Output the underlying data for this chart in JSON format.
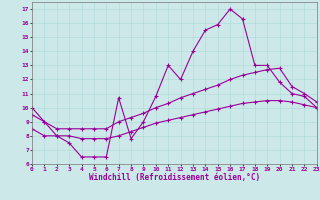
{
  "title": "",
  "xlabel": "Windchill (Refroidissement éolien,°C)",
  "ylabel": "",
  "bg_color": "#cce8e8",
  "line_color": "#990099",
  "x": [
    0,
    1,
    2,
    3,
    4,
    5,
    6,
    7,
    8,
    9,
    10,
    11,
    12,
    13,
    14,
    15,
    16,
    17,
    18,
    19,
    20,
    21,
    22,
    23
  ],
  "line1": [
    10,
    9,
    8,
    7.5,
    6.5,
    6.5,
    6.5,
    10.7,
    7.8,
    9.0,
    10.8,
    13.0,
    12.0,
    14.0,
    15.5,
    15.9,
    17.0,
    16.3,
    13.0,
    13.0,
    11.8,
    11.0,
    10.8,
    10.0
  ],
  "line2": [
    9.5,
    9.0,
    8.5,
    8.5,
    8.5,
    8.5,
    8.5,
    9.0,
    9.3,
    9.6,
    10.0,
    10.3,
    10.7,
    11.0,
    11.3,
    11.6,
    12.0,
    12.3,
    12.5,
    12.7,
    12.8,
    11.5,
    11.0,
    10.4
  ],
  "line3": [
    8.5,
    8.0,
    8.0,
    8.0,
    7.8,
    7.8,
    7.8,
    8.0,
    8.3,
    8.6,
    8.9,
    9.1,
    9.3,
    9.5,
    9.7,
    9.9,
    10.1,
    10.3,
    10.4,
    10.5,
    10.5,
    10.4,
    10.2,
    10.0
  ],
  "ylim": [
    6,
    17.5
  ],
  "xlim": [
    0,
    23
  ],
  "yticks": [
    6,
    7,
    8,
    9,
    10,
    11,
    12,
    13,
    14,
    15,
    16,
    17
  ],
  "xticks": [
    0,
    1,
    2,
    3,
    4,
    5,
    6,
    7,
    8,
    9,
    10,
    11,
    12,
    13,
    14,
    15,
    16,
    17,
    18,
    19,
    20,
    21,
    22,
    23
  ],
  "marker": "+",
  "markersize": 3,
  "linewidth": 0.8,
  "tick_fontsize": 4.5,
  "label_fontsize": 5.5
}
